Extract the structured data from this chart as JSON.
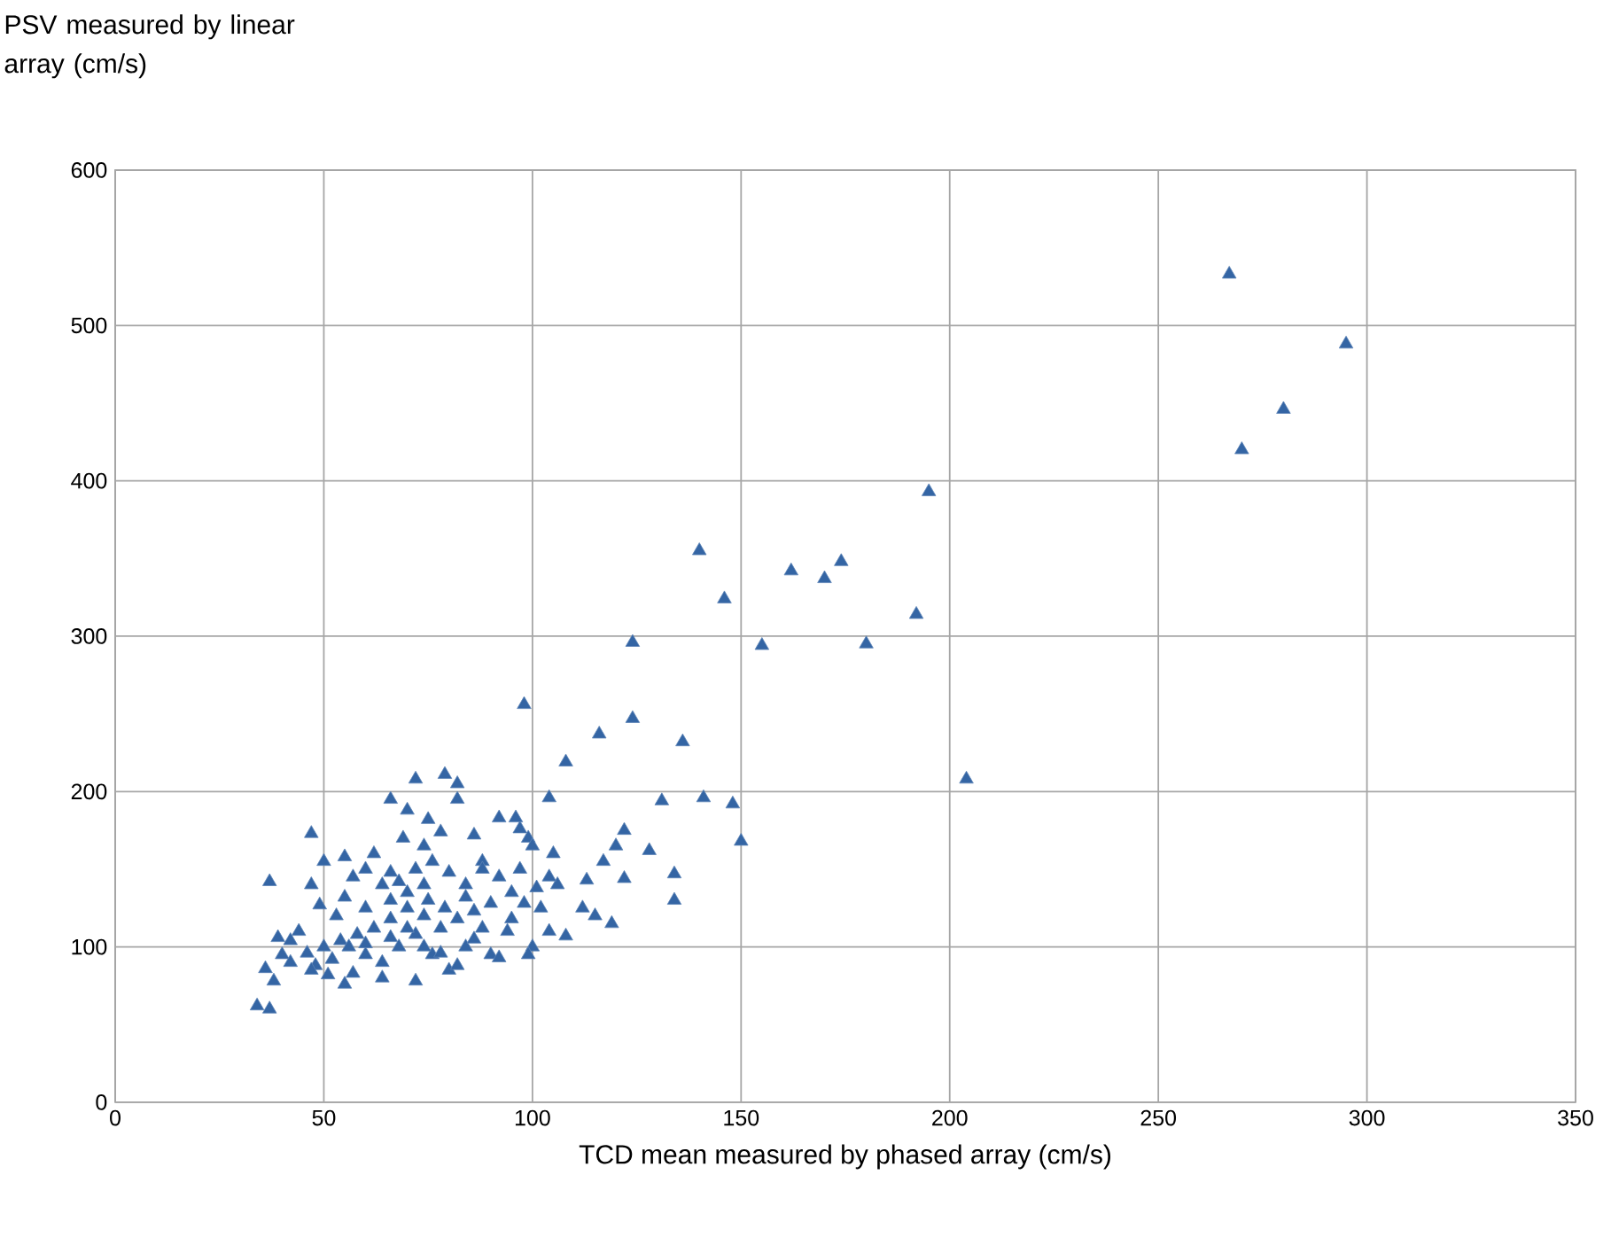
{
  "chart_data": {
    "type": "scatter",
    "xlabel": "TCD mean measured by phased array (cm/s)",
    "ylabel": "PSV measured by linear array (cm/s)",
    "xlim": [
      0,
      350
    ],
    "ylim": [
      0,
      600
    ],
    "xticks": [
      0,
      50,
      100,
      150,
      200,
      250,
      300,
      350
    ],
    "yticks": [
      0,
      100,
      200,
      300,
      400,
      500,
      600
    ],
    "grid": true,
    "marker": "triangle",
    "series": [
      {
        "color": "#3465a4",
        "x": [
          267,
          295,
          280,
          270,
          195,
          140,
          162,
          174,
          170,
          146,
          192,
          124,
          155,
          180,
          204,
          98,
          124,
          116,
          136,
          108,
          148,
          131,
          141,
          150,
          128,
          134,
          134,
          119,
          122,
          117,
          113,
          122,
          120,
          104,
          105,
          101,
          102,
          106,
          108,
          104,
          115,
          112,
          99,
          100,
          97,
          92,
          96,
          86,
          88,
          79,
          72,
          82,
          82,
          66,
          70,
          75,
          78,
          74,
          69,
          62,
          55,
          47,
          50,
          37,
          47,
          49,
          53,
          57,
          60,
          64,
          68,
          72,
          76,
          80,
          84,
          88,
          92,
          95,
          98,
          90,
          86,
          82,
          78,
          74,
          70,
          66,
          62,
          58,
          54,
          50,
          46,
          42,
          39,
          40,
          44,
          48,
          52,
          56,
          60,
          64,
          68,
          72,
          76,
          80,
          84,
          90,
          94,
          100,
          99,
          88,
          64,
          57,
          51,
          47,
          42,
          38,
          36,
          34,
          37,
          55,
          72,
          82,
          92,
          66,
          60,
          55,
          70,
          75,
          79,
          84,
          60,
          66,
          70,
          74,
          78,
          86,
          95,
          104,
          97,
          66,
          74
        ],
        "values": [
          533,
          488,
          446,
          420,
          393,
          355,
          342,
          348,
          337,
          324,
          314,
          296,
          294,
          295,
          208,
          256,
          247,
          237,
          232,
          219,
          192,
          194,
          196,
          168,
          162,
          147,
          130,
          115,
          144,
          155,
          143,
          175,
          165,
          196,
          160,
          138,
          125,
          140,
          107,
          110,
          120,
          125,
          170,
          165,
          176,
          183,
          183,
          172,
          155,
          211,
          208,
          205,
          195,
          195,
          188,
          182,
          174,
          165,
          170,
          160,
          158,
          173,
          155,
          142,
          140,
          127,
          120,
          145,
          150,
          140,
          142,
          150,
          155,
          148,
          140,
          150,
          145,
          135,
          128,
          128,
          123,
          118,
          112,
          120,
          125,
          118,
          112,
          108,
          104,
          100,
          96,
          104,
          106,
          95,
          110,
          88,
          92,
          100,
          95,
          90,
          100,
          108,
          95,
          85,
          100,
          95,
          110,
          100,
          95,
          112,
          80,
          83,
          82,
          85,
          90,
          78,
          86,
          62,
          60,
          76,
          78,
          88,
          93,
          130,
          125,
          132,
          135,
          130,
          125,
          132,
          102,
          106,
          112,
          100,
          96,
          105,
          118,
          145,
          150,
          148,
          140
        ]
      }
    ]
  }
}
